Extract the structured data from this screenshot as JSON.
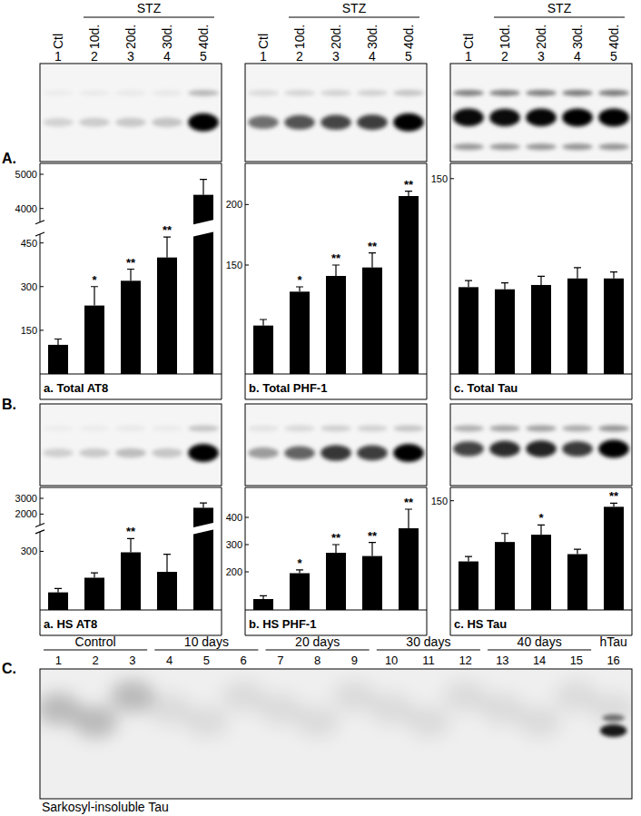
{
  "header": {
    "group_label": "STZ",
    "group_lanes": [
      2,
      3,
      4,
      5
    ],
    "lanes": [
      {
        "label": "Ctl",
        "number": 1
      },
      {
        "label": "10d.",
        "number": 2
      },
      {
        "label": "20d.",
        "number": 3
      },
      {
        "label": "30d.",
        "number": 4
      },
      {
        "label": "40d.",
        "number": 5
      }
    ]
  },
  "panel_labels": [
    "A.",
    "B."
  ],
  "chart_data": [
    {
      "type": "bar",
      "title": "a. Total AT8",
      "categories": [
        null,
        null,
        null,
        null,
        null
      ],
      "values": [
        100,
        235,
        320,
        400,
        4400
      ],
      "errors": [
        20,
        65,
        40,
        70,
        450
      ],
      "annotations": [
        null,
        "*",
        "**",
        "**",
        null
      ],
      "color": "#000000",
      "ylim": [
        0,
        5000
      ],
      "yticks": [
        150,
        300,
        450,
        4000,
        5000
      ],
      "ybreak": [
        480,
        3600
      ]
    },
    {
      "type": "bar",
      "title": "b. Total PHF-1",
      "categories": [
        null,
        null,
        null,
        null,
        null
      ],
      "values": [
        100,
        128,
        141,
        148,
        207
      ],
      "errors": [
        5,
        4,
        9,
        12,
        4
      ],
      "annotations": [
        null,
        "*",
        "**",
        "**",
        "**"
      ],
      "color": "#000000",
      "ylim": [
        60,
        225
      ],
      "yticks": [
        150,
        200
      ]
    },
    {
      "type": "bar",
      "title": "c. Total Tau",
      "categories": [
        null,
        null,
        null,
        null,
        null
      ],
      "values": [
        100,
        99,
        101,
        104,
        104
      ],
      "errors": [
        3,
        3,
        4,
        5,
        3
      ],
      "annotations": [
        null,
        null,
        null,
        null,
        null
      ],
      "color": "#000000",
      "ylim": [
        60,
        152
      ],
      "yticks": [
        150
      ]
    },
    {
      "type": "bar",
      "title": "a. HS AT8",
      "categories": [
        null,
        null,
        null,
        null,
        null
      ],
      "values": [
        90,
        165,
        295,
        195,
        2400
      ],
      "errors": [
        20,
        25,
        70,
        90,
        300
      ],
      "annotations": [
        null,
        null,
        "**",
        null,
        null
      ],
      "color": "#000000",
      "ylim": [
        0,
        3000
      ],
      "yticks": [
        300,
        2000,
        3000
      ],
      "ybreak": [
        400,
        1300
      ]
    },
    {
      "type": "bar",
      "title": "b. HS PHF-1",
      "categories": [
        null,
        null,
        null,
        null,
        null
      ],
      "values": [
        100,
        195,
        270,
        258,
        360
      ],
      "errors": [
        12,
        12,
        30,
        50,
        70
      ],
      "annotations": [
        null,
        "*",
        "**",
        "**",
        "**"
      ],
      "color": "#000000",
      "ylim": [
        60,
        470
      ],
      "yticks": [
        200,
        300,
        400
      ]
    },
    {
      "type": "bar",
      "title": "c. HS Tau",
      "categories": [
        null,
        null,
        null,
        null,
        null
      ],
      "values": [
        100,
        116,
        122,
        106,
        145
      ],
      "errors": [
        4,
        7,
        8,
        4,
        3
      ],
      "annotations": [
        null,
        null,
        "*",
        null,
        "**"
      ],
      "color": "#000000",
      "ylim": [
        60,
        152
      ],
      "yticks": [
        150
      ]
    }
  ],
  "blot_c": {
    "label": "C.",
    "groups": [
      {
        "label": "Control",
        "lanes": [
          1,
          2,
          3
        ]
      },
      {
        "label": "10 days",
        "lanes": [
          4,
          5,
          6
        ]
      },
      {
        "label": "20 days",
        "lanes": [
          7,
          8,
          9
        ]
      },
      {
        "label": "30 days",
        "lanes": [
          10,
          11,
          12
        ]
      },
      {
        "label": "40 days",
        "lanes": [
          13,
          14,
          15
        ]
      },
      {
        "label": "hTau",
        "lanes": [
          16
        ]
      }
    ],
    "caption": "Sarkosyl-insoluble Tau"
  }
}
